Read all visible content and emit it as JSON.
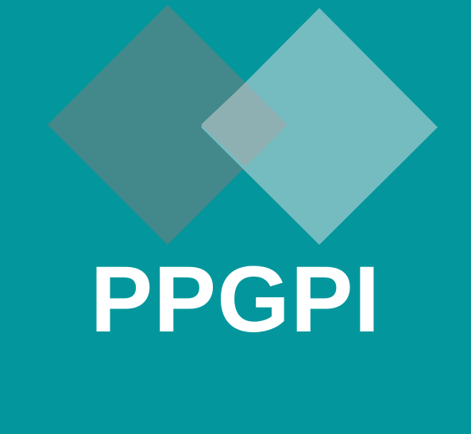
{
  "logo": {
    "text": "PPGPI",
    "background_color": "#03979d",
    "left_diamond_color": "#43888a",
    "right_diamond_color": "#74bcc0",
    "overlap_color": "#8fb0b2",
    "text_color": "#ffffff"
  }
}
